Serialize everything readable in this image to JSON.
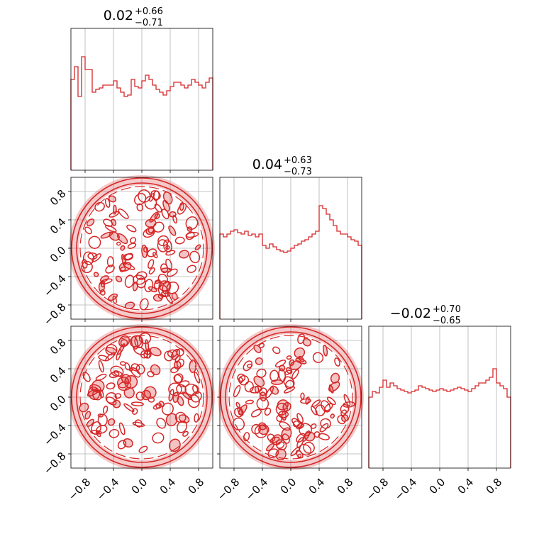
{
  "chart_data": {
    "type": "corner",
    "color": "#d62728",
    "grid": true,
    "tick_labels": [
      "−0.8",
      "−0.4",
      "0.0",
      "0.4",
      "0.8"
    ],
    "tick_values": [
      -0.8,
      -0.4,
      0.0,
      0.4,
      0.8
    ],
    "xlim": [
      -1,
      1
    ],
    "ylim": [
      -1,
      1
    ],
    "titles": [
      {
        "median": "0.02",
        "plus": "+0.66",
        "minus": "−0.71"
      },
      {
        "median": "0.04",
        "plus": "+0.63",
        "minus": "−0.73"
      },
      {
        "median": "−0.02",
        "plus": "+0.70",
        "minus": "−0.65"
      }
    ],
    "histograms": [
      {
        "bin_edges_range": [
          -1,
          1
        ],
        "bins": 40,
        "counts": [
          0.64,
          0.73,
          0.52,
          0.8,
          0.71,
          0.71,
          0.55,
          0.57,
          0.58,
          0.6,
          0.6,
          0.6,
          0.63,
          0.58,
          0.55,
          0.52,
          0.53,
          0.64,
          0.59,
          0.58,
          0.63,
          0.67,
          0.64,
          0.6,
          0.57,
          0.55,
          0.53,
          0.56,
          0.59,
          0.62,
          0.62,
          0.6,
          0.58,
          0.6,
          0.64,
          0.62,
          0.6,
          0.58,
          0.62,
          0.65
        ]
      },
      {
        "bin_edges_range": [
          -1,
          1
        ],
        "bins": 40,
        "counts": [
          0.6,
          0.58,
          0.6,
          0.62,
          0.63,
          0.61,
          0.6,
          0.62,
          0.59,
          0.6,
          0.58,
          0.6,
          0.52,
          0.5,
          0.53,
          0.51,
          0.49,
          0.48,
          0.47,
          0.48,
          0.5,
          0.52,
          0.53,
          0.55,
          0.56,
          0.58,
          0.6,
          0.62,
          0.8,
          0.78,
          0.74,
          0.7,
          0.66,
          0.62,
          0.6,
          0.6,
          0.58,
          0.56,
          0.55,
          0.52
        ]
      },
      {
        "bin_edges_range": [
          -1,
          1
        ],
        "bins": 40,
        "counts": [
          0.5,
          0.54,
          0.53,
          0.57,
          0.62,
          0.57,
          0.6,
          0.58,
          0.56,
          0.55,
          0.54,
          0.53,
          0.54,
          0.55,
          0.58,
          0.57,
          0.56,
          0.55,
          0.54,
          0.55,
          0.56,
          0.55,
          0.54,
          0.55,
          0.56,
          0.57,
          0.56,
          0.55,
          0.54,
          0.56,
          0.58,
          0.6,
          0.6,
          0.62,
          0.64,
          0.7,
          0.6,
          0.58,
          0.56,
          0.5
        ]
      }
    ],
    "contours": [
      {
        "x_param": 1,
        "y_param": 2,
        "support": "unit disk",
        "levels": [
          "0.118",
          "0.393",
          "0.675",
          "0.865"
        ]
      },
      {
        "x_param": 1,
        "y_param": 3,
        "support": "unit disk",
        "levels": [
          "0.118",
          "0.393",
          "0.675",
          "0.865"
        ]
      },
      {
        "x_param": 2,
        "y_param": 3,
        "support": "unit disk",
        "levels": [
          "0.118",
          "0.393",
          "0.675",
          "0.865"
        ]
      }
    ]
  }
}
